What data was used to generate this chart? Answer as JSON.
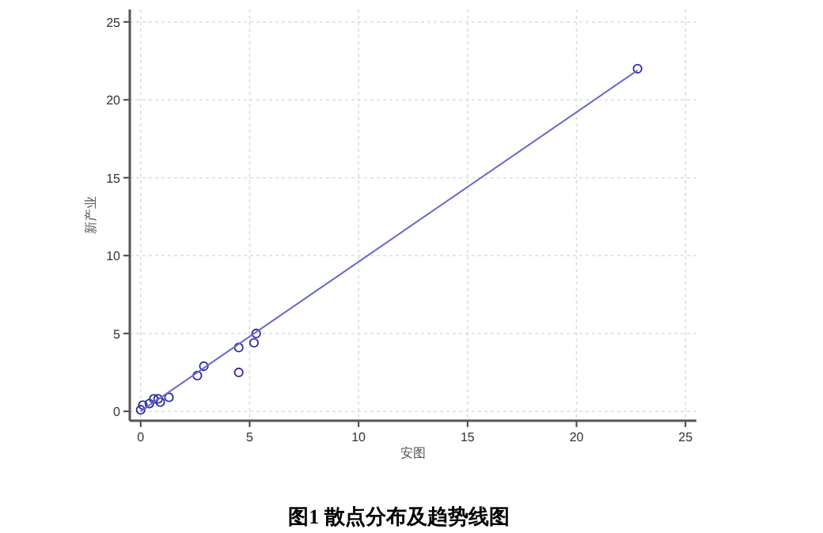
{
  "chart_data": {
    "type": "scatter",
    "title": "图1 散点分布及趋势线图",
    "xlabel": "安图",
    "ylabel": "新产业",
    "xlim": [
      -0.5,
      25.5
    ],
    "ylim": [
      -0.6,
      25.8
    ],
    "xticks": [
      0,
      5,
      10,
      15,
      20,
      25
    ],
    "yticks": [
      0,
      5,
      10,
      15,
      20,
      25
    ],
    "grid": true,
    "marker": "circle",
    "series": [
      {
        "color": "#2b2ba0",
        "x": [
          22.8,
          5.3,
          5.2,
          4.5,
          4.5,
          2.9,
          2.6,
          1.3,
          0.9,
          0.8,
          0.6,
          0.4,
          0.1,
          0.0
        ],
        "values": [
          22.0,
          5.0,
          4.4,
          4.1,
          2.5,
          2.9,
          2.3,
          0.9,
          0.6,
          0.8,
          0.8,
          0.5,
          0.4,
          0.1
        ]
      },
      {
        "type": "line",
        "color": "#6a6acb",
        "marker": "none",
        "x": [
          0,
          22.8
        ],
        "values": [
          0,
          21.9
        ]
      }
    ]
  }
}
